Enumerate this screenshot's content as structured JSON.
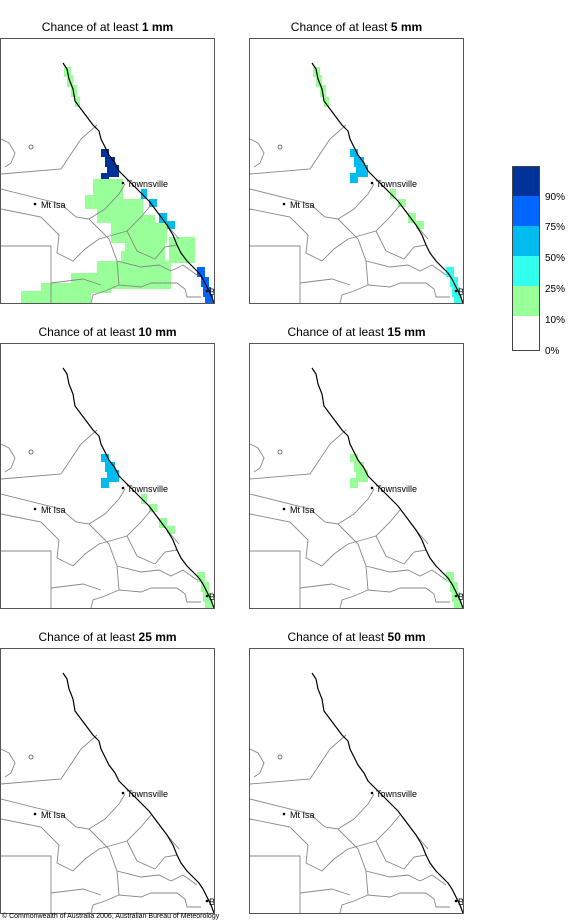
{
  "map_labels": {
    "mt_isa": "Mt Isa",
    "townsville": "Townsville",
    "brisbane": "BRIS"
  },
  "panels": [
    {
      "title_prefix": "Chance of at least",
      "threshold": "1 mm",
      "rainfall_areas": [
        {
          "region": "cape-york-east-coast",
          "category": "10%"
        },
        {
          "region": "north-tropical-coast",
          "category": "90%"
        },
        {
          "region": "central-coast",
          "category": "50%"
        },
        {
          "region": "southeast-coast",
          "category": "75%"
        },
        {
          "region": "central-interior",
          "category": "10%"
        },
        {
          "region": "southwest-interior",
          "category": "10%"
        }
      ]
    },
    {
      "title_prefix": "Chance of at least",
      "threshold": "5 mm",
      "rainfall_areas": [
        {
          "region": "cape-york-east-coast",
          "category": "10%"
        },
        {
          "region": "north-tropical-coast",
          "category": "50%"
        },
        {
          "region": "central-coast",
          "category": "10%"
        },
        {
          "region": "southeast-coast",
          "category": "25%"
        }
      ]
    },
    {
      "title_prefix": "Chance of at least",
      "threshold": "10 mm",
      "rainfall_areas": [
        {
          "region": "north-tropical-coast",
          "category": "50%"
        },
        {
          "region": "central-coast",
          "category": "10%"
        },
        {
          "region": "southeast-coast",
          "category": "10%"
        }
      ]
    },
    {
      "title_prefix": "Chance of at least",
      "threshold": "15 mm",
      "rainfall_areas": [
        {
          "region": "north-tropical-coast",
          "category": "10%"
        },
        {
          "region": "southeast-coast",
          "category": "10%"
        }
      ]
    },
    {
      "title_prefix": "Chance of at least",
      "threshold": "25 mm",
      "rainfall_areas": []
    },
    {
      "title_prefix": "Chance of at least",
      "threshold": "50 mm",
      "rainfall_areas": []
    }
  ],
  "legend": {
    "categories": [
      {
        "label": "90%",
        "color": "#003399"
      },
      {
        "label": "75%",
        "color": "#0066ff"
      },
      {
        "label": "50%",
        "color": "#00bbee"
      },
      {
        "label": "25%",
        "color": "#33ffee"
      },
      {
        "label": "10%",
        "color": "#99ff99"
      },
      {
        "label": "0%",
        "color": "#ffffff"
      }
    ]
  },
  "copyright": "© Commonwealth of Australia 2006, Australian Bureau of Meteorology"
}
